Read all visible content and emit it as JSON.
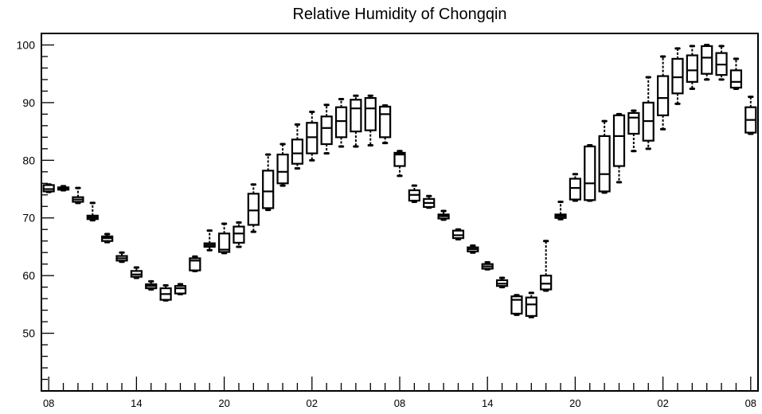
{
  "chart_data": {
    "type": "boxplot",
    "title": "Relative Humidity of Chongqin",
    "xlabel": "",
    "ylabel": "",
    "ylim": [
      40,
      102
    ],
    "yticks": [
      50,
      60,
      70,
      80,
      90,
      100
    ],
    "xlim": [
      -0.5,
      48.5
    ],
    "xticks": [
      {
        "x": 0,
        "label": "08"
      },
      {
        "x": 6,
        "label": "14"
      },
      {
        "x": 12,
        "label": "20"
      },
      {
        "x": 18,
        "label": "02"
      },
      {
        "x": 24,
        "label": "08"
      },
      {
        "x": 30,
        "label": "14"
      },
      {
        "x": 36,
        "label": "20"
      },
      {
        "x": 42,
        "label": "02"
      },
      {
        "x": 48,
        "label": "08"
      }
    ],
    "boxes": [
      {
        "x": 0,
        "min": 74.5,
        "q1": 74.6,
        "median": 75.0,
        "q3": 75.7,
        "max": 75.8
      },
      {
        "x": 1,
        "min": 74.8,
        "q1": 74.9,
        "median": 75.1,
        "q3": 75.3,
        "max": 75.5
      },
      {
        "x": 2,
        "min": 72.6,
        "q1": 72.8,
        "median": 73.2,
        "q3": 73.6,
        "max": 75.2
      },
      {
        "x": 3,
        "min": 69.6,
        "q1": 69.8,
        "median": 70.1,
        "q3": 70.4,
        "max": 72.6
      },
      {
        "x": 4,
        "min": 65.8,
        "q1": 66.0,
        "median": 66.5,
        "q3": 66.8,
        "max": 67.2
      },
      {
        "x": 5,
        "min": 62.4,
        "q1": 62.6,
        "median": 63.0,
        "q3": 63.4,
        "max": 64.0
      },
      {
        "x": 6,
        "min": 59.6,
        "q1": 59.8,
        "median": 60.2,
        "q3": 60.8,
        "max": 61.4
      },
      {
        "x": 7,
        "min": 57.6,
        "q1": 57.8,
        "median": 58.2,
        "q3": 58.5,
        "max": 59.0
      },
      {
        "x": 8,
        "min": 55.7,
        "q1": 55.8,
        "median": 56.8,
        "q3": 57.8,
        "max": 58.3
      },
      {
        "x": 9,
        "min": 56.8,
        "q1": 56.9,
        "median": 57.8,
        "q3": 58.2,
        "max": 58.5
      },
      {
        "x": 10,
        "min": 60.8,
        "q1": 60.9,
        "median": 62.6,
        "q3": 63.0,
        "max": 63.3
      },
      {
        "x": 11,
        "min": 64.4,
        "q1": 65.0,
        "median": 65.3,
        "q3": 65.6,
        "max": 67.8
      },
      {
        "x": 12,
        "min": 63.9,
        "q1": 64.1,
        "median": 64.5,
        "q3": 67.3,
        "max": 69.0
      },
      {
        "x": 13,
        "min": 65.0,
        "q1": 65.7,
        "median": 67.3,
        "q3": 68.5,
        "max": 69.2
      },
      {
        "x": 14,
        "min": 67.6,
        "q1": 68.8,
        "median": 71.3,
        "q3": 74.2,
        "max": 75.8
      },
      {
        "x": 15,
        "min": 71.4,
        "q1": 71.7,
        "median": 74.6,
        "q3": 78.2,
        "max": 81.0
      },
      {
        "x": 16,
        "min": 75.6,
        "q1": 76.0,
        "median": 78.0,
        "q3": 81.0,
        "max": 82.8
      },
      {
        "x": 17,
        "min": 78.6,
        "q1": 79.4,
        "median": 81.2,
        "q3": 83.6,
        "max": 86.2
      },
      {
        "x": 18,
        "min": 80.0,
        "q1": 81.2,
        "median": 84.0,
        "q3": 86.5,
        "max": 88.4
      },
      {
        "x": 19,
        "min": 81.2,
        "q1": 82.8,
        "median": 85.6,
        "q3": 87.6,
        "max": 89.6
      },
      {
        "x": 20,
        "min": 82.4,
        "q1": 84.0,
        "median": 86.8,
        "q3": 89.2,
        "max": 90.6
      },
      {
        "x": 21,
        "min": 82.4,
        "q1": 85.0,
        "median": 89.0,
        "q3": 90.5,
        "max": 91.2
      },
      {
        "x": 22,
        "min": 82.6,
        "q1": 85.2,
        "median": 89.0,
        "q3": 90.8,
        "max": 91.2
      },
      {
        "x": 23,
        "min": 83.0,
        "q1": 84.0,
        "median": 88.0,
        "q3": 89.3,
        "max": 89.5
      },
      {
        "x": 24,
        "min": 77.3,
        "q1": 79.0,
        "median": 81.0,
        "q3": 81.3,
        "max": 81.6
      },
      {
        "x": 25,
        "min": 72.8,
        "q1": 73.0,
        "median": 74.0,
        "q3": 74.8,
        "max": 75.6
      },
      {
        "x": 26,
        "min": 71.8,
        "q1": 71.9,
        "median": 72.6,
        "q3": 73.3,
        "max": 73.8
      },
      {
        "x": 27,
        "min": 69.7,
        "q1": 69.9,
        "median": 70.3,
        "q3": 70.6,
        "max": 71.2
      },
      {
        "x": 28,
        "min": 66.3,
        "q1": 66.5,
        "median": 67.0,
        "q3": 67.8,
        "max": 68.0
      },
      {
        "x": 29,
        "min": 64.0,
        "q1": 64.2,
        "median": 64.6,
        "q3": 64.9,
        "max": 65.2
      },
      {
        "x": 30,
        "min": 61.1,
        "q1": 61.2,
        "median": 61.6,
        "q3": 62.0,
        "max": 62.3
      },
      {
        "x": 31,
        "min": 58.0,
        "q1": 58.2,
        "median": 58.6,
        "q3": 59.2,
        "max": 59.6
      },
      {
        "x": 32,
        "min": 53.2,
        "q1": 53.4,
        "median": 55.8,
        "q3": 56.4,
        "max": 56.6
      },
      {
        "x": 33,
        "min": 52.8,
        "q1": 53.0,
        "median": 55.0,
        "q3": 56.2,
        "max": 57.0
      },
      {
        "x": 34,
        "min": 57.4,
        "q1": 57.6,
        "median": 58.6,
        "q3": 60.0,
        "max": 66.0
      },
      {
        "x": 35,
        "min": 69.8,
        "q1": 70.0,
        "median": 70.3,
        "q3": 70.6,
        "max": 72.8
      },
      {
        "x": 36,
        "min": 73.0,
        "q1": 73.2,
        "median": 75.2,
        "q3": 76.8,
        "max": 77.6
      },
      {
        "x": 37,
        "min": 73.0,
        "q1": 73.1,
        "median": 76.0,
        "q3": 82.4,
        "max": 82.6
      },
      {
        "x": 38,
        "min": 74.4,
        "q1": 74.6,
        "median": 77.6,
        "q3": 84.2,
        "max": 86.8
      },
      {
        "x": 39,
        "min": 76.2,
        "q1": 79.0,
        "median": 84.2,
        "q3": 87.8,
        "max": 88.0
      },
      {
        "x": 40,
        "min": 81.6,
        "q1": 84.6,
        "median": 87.4,
        "q3": 88.2,
        "max": 88.6
      },
      {
        "x": 41,
        "min": 82.0,
        "q1": 83.4,
        "median": 86.8,
        "q3": 90.0,
        "max": 94.4
      },
      {
        "x": 42,
        "min": 85.4,
        "q1": 87.8,
        "median": 90.8,
        "q3": 94.6,
        "max": 98.0
      },
      {
        "x": 43,
        "min": 89.8,
        "q1": 91.6,
        "median": 94.4,
        "q3": 97.6,
        "max": 99.4
      },
      {
        "x": 44,
        "min": 92.4,
        "q1": 93.6,
        "median": 95.6,
        "q3": 98.2,
        "max": 99.8
      },
      {
        "x": 45,
        "min": 94.0,
        "q1": 95.0,
        "median": 97.8,
        "q3": 99.8,
        "max": 100.0
      },
      {
        "x": 46,
        "min": 94.0,
        "q1": 94.8,
        "median": 96.6,
        "q3": 98.6,
        "max": 99.8
      },
      {
        "x": 47,
        "min": 92.4,
        "q1": 92.6,
        "median": 93.6,
        "q3": 95.6,
        "max": 97.6
      },
      {
        "x": 48,
        "min": 84.6,
        "q1": 84.8,
        "median": 87.0,
        "q3": 89.2,
        "max": 91.0
      }
    ]
  }
}
